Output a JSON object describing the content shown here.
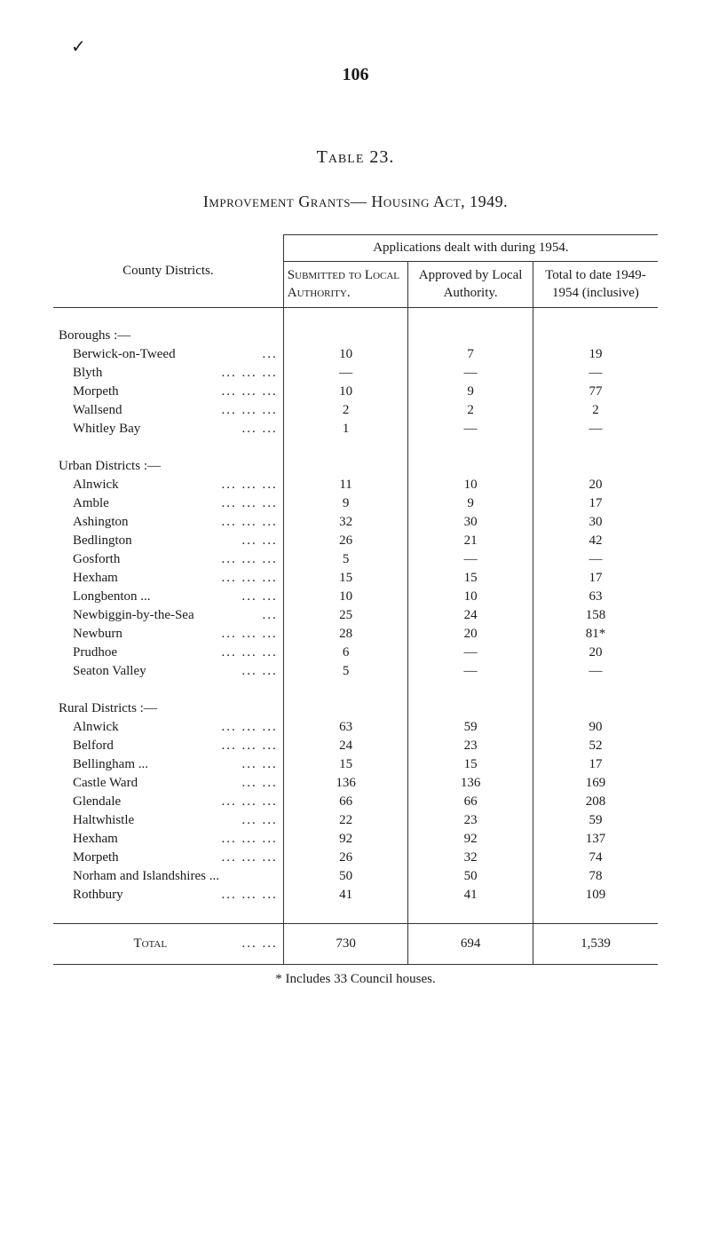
{
  "page_number": "106",
  "tick": "✓",
  "table_title": "Table 23.",
  "subtitle": "Improvement Grants— Housing Act, 1949.",
  "header_span": "Applications dealt with during 1954.",
  "col_label": "County Districts.",
  "col1": "Submitted to Local Authority.",
  "col2": "Approved by Local Authority.",
  "col3": "Total to date 1949-1954 (inclusive)",
  "sections": [
    {
      "label": "Boroughs :—",
      "rows": [
        {
          "name": "Berwick-on-Tweed",
          "dots": "...",
          "c1": "10",
          "c2": "7",
          "c3": "19"
        },
        {
          "name": "Blyth",
          "dots": "...   ...   ...",
          "c1": "—",
          "c2": "—",
          "c3": "—"
        },
        {
          "name": "Morpeth",
          "dots": "...   ...   ...",
          "c1": "10",
          "c2": "9",
          "c3": "77"
        },
        {
          "name": "Wallsend",
          "dots": "...   ...   ...",
          "c1": "2",
          "c2": "2",
          "c3": "2"
        },
        {
          "name": "Whitley Bay",
          "dots": "...   ...",
          "c1": "1",
          "c2": "—",
          "c3": "—"
        }
      ]
    },
    {
      "label": "Urban Districts :—",
      "rows": [
        {
          "name": "Alnwick",
          "dots": "...   ...   ...",
          "c1": "11",
          "c2": "10",
          "c3": "20"
        },
        {
          "name": "Amble",
          "dots": "...   ...   ...",
          "c1": "9",
          "c2": "9",
          "c3": "17"
        },
        {
          "name": "Ashington",
          "dots": "...   ...   ...",
          "c1": "32",
          "c2": "30",
          "c3": "30"
        },
        {
          "name": "Bedlington",
          "dots": "...   ...",
          "c1": "26",
          "c2": "21",
          "c3": "42"
        },
        {
          "name": "Gosforth",
          "dots": "...   ...   ...",
          "c1": "5",
          "c2": "—",
          "c3": "—"
        },
        {
          "name": "Hexham",
          "dots": "...   ...   ...",
          "c1": "15",
          "c2": "15",
          "c3": "17"
        },
        {
          "name": "Longbenton ...",
          "dots": "...   ...",
          "c1": "10",
          "c2": "10",
          "c3": "63"
        },
        {
          "name": "Newbiggin-by-the-Sea",
          "dots": "...",
          "c1": "25",
          "c2": "24",
          "c3": "158"
        },
        {
          "name": "Newburn",
          "dots": "...   ...   ...",
          "c1": "28",
          "c2": "20",
          "c3": "81*"
        },
        {
          "name": "Prudhoe",
          "dots": "...   ...   ...",
          "c1": "6",
          "c2": "—",
          "c3": "20"
        },
        {
          "name": "Seaton Valley",
          "dots": "...   ...",
          "c1": "5",
          "c2": "—",
          "c3": "—"
        }
      ]
    },
    {
      "label": "Rural Districts :—",
      "rows": [
        {
          "name": "Alnwick",
          "dots": "...   ...   ...",
          "c1": "63",
          "c2": "59",
          "c3": "90"
        },
        {
          "name": "Belford",
          "dots": "...   ...   ...",
          "c1": "24",
          "c2": "23",
          "c3": "52"
        },
        {
          "name": "Bellingham ...",
          "dots": "...   ...",
          "c1": "15",
          "c2": "15",
          "c3": "17"
        },
        {
          "name": "Castle Ward",
          "dots": "...   ...",
          "c1": "136",
          "c2": "136",
          "c3": "169"
        },
        {
          "name": "Glendale",
          "dots": "...   ...   ...",
          "c1": "66",
          "c2": "66",
          "c3": "208"
        },
        {
          "name": "Haltwhistle",
          "dots": "...   ...",
          "c1": "22",
          "c2": "23",
          "c3": "59"
        },
        {
          "name": "Hexham",
          "dots": "...   ...   ...",
          "c1": "92",
          "c2": "92",
          "c3": "137"
        },
        {
          "name": "Morpeth",
          "dots": "...   ...   ...",
          "c1": "26",
          "c2": "32",
          "c3": "74"
        },
        {
          "name": "Norham and Islandshires ...",
          "dots": "",
          "c1": "50",
          "c2": "50",
          "c3": "78"
        },
        {
          "name": "Rothbury",
          "dots": "...   ...   ...",
          "c1": "41",
          "c2": "41",
          "c3": "109"
        }
      ]
    }
  ],
  "total": {
    "label": "Total",
    "dots": "...   ...",
    "c1": "730",
    "c2": "694",
    "c3": "1,539"
  },
  "footnote": "* Includes 33 Council houses.",
  "colors": {
    "text": "#1a1a1a",
    "background": "#ffffff",
    "border": "#333333"
  },
  "fonts": {
    "body_size": 15,
    "page_num_size": 20,
    "title_size": 20,
    "subtitle_size": 18
  }
}
